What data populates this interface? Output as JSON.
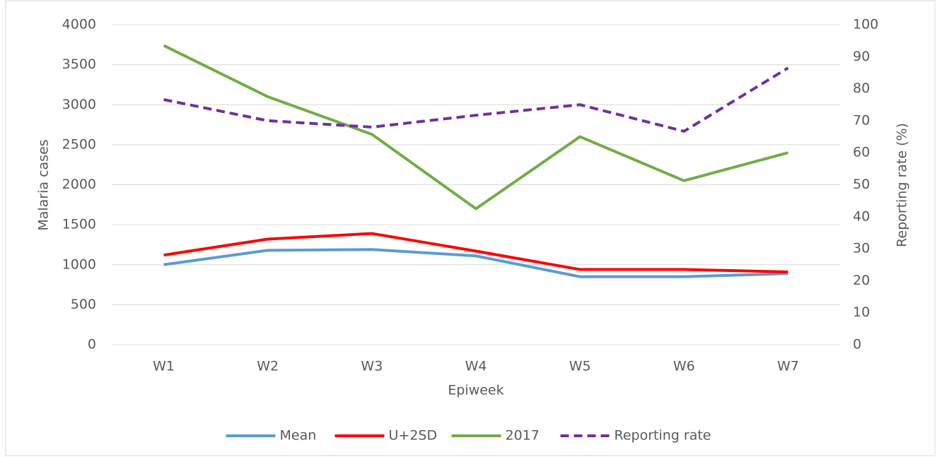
{
  "chart_data": {
    "type": "line",
    "categories": [
      "W1",
      "W2",
      "W3",
      "W4",
      "W5",
      "W6",
      "W7"
    ],
    "series": [
      {
        "name": "Mean",
        "color": "#5b9bd5",
        "values": [
          1000,
          1180,
          1190,
          1110,
          850,
          850,
          890
        ]
      },
      {
        "name": "U+2SD",
        "color": "#ff0000",
        "values": [
          1120,
          1320,
          1390,
          1170,
          940,
          940,
          910
        ]
      },
      {
        "name": "2017",
        "color": "#70ad47",
        "values": [
          3740,
          3100,
          2630,
          1700,
          2600,
          2050,
          2400
        ]
      },
      {
        "name": "Reporting rate",
        "color": "#7030a0",
        "dashed": true,
        "axis": "y2",
        "values": [
          76.6,
          70,
          68,
          71.7,
          75,
          66.7,
          86.5
        ]
      }
    ],
    "ylabel": "Malaria cases",
    "y2label": "Reporting rate (%)",
    "xlabel": "Epiweek",
    "ylim": [
      0,
      4000
    ],
    "yticks": [
      0,
      500,
      1000,
      1500,
      2000,
      2500,
      3000,
      3500,
      4000
    ],
    "y2lim": [
      0,
      100
    ],
    "y2ticks": [
      0,
      10,
      20,
      30,
      40,
      50,
      60,
      70,
      80,
      90,
      100
    ],
    "grid": true,
    "legend": "bottom"
  }
}
